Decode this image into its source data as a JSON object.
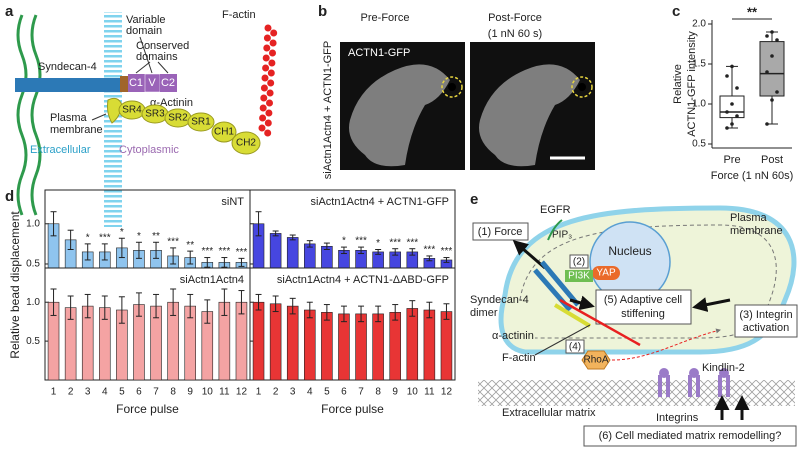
{
  "panel_letters": [
    "a",
    "b",
    "c",
    "d",
    "e"
  ],
  "diagram_a": {
    "syndecan": "Syndecan-4",
    "variable": [
      "Variable",
      "domain"
    ],
    "conserved": [
      "Conserved",
      "domains"
    ],
    "actinin": "α-Actinin",
    "factin": "F-actin",
    "membrane": [
      "Plasma",
      "membrane"
    ],
    "extracellular": "Extracellular",
    "cytoplasmic": "Cytoplasmic",
    "domains": [
      "C1",
      "V",
      "C2"
    ],
    "repeats": [
      "SR4",
      "SR3",
      "SR2",
      "SR1",
      "CH1",
      "CH2"
    ]
  },
  "images_b": {
    "columns": [
      [
        "Pre-Force"
      ],
      [
        "Post-Force",
        "(1 nN 60 s)"
      ]
    ],
    "stain": "ACTN1-GFP",
    "row_label": "siActn1Actn4 + ACTN1-GFP"
  },
  "d_ylabel": "Relative bead displacement",
  "chart_data": [
    {
      "type": "box",
      "categories": [
        "Pre",
        "Post"
      ],
      "colors": [
        "#ffffff",
        "#a9a9a9"
      ],
      "stats": [
        {
          "whislo": 0.7,
          "q1": 0.83,
          "med": 0.9,
          "q3": 1.1,
          "whishi": 1.47
        },
        {
          "whislo": 0.75,
          "q1": 1.1,
          "med": 1.38,
          "q3": 1.78,
          "whishi": 1.9
        }
      ],
      "points": [
        [
          0.7,
          0.75,
          0.85,
          0.9,
          1.0,
          1.2,
          1.35,
          1.47
        ],
        [
          0.75,
          1.05,
          1.15,
          1.4,
          1.6,
          1.8,
          1.85,
          1.9
        ]
      ],
      "ylabel": [
        "Relative",
        "ACTN1-GFP intensity"
      ],
      "xlabel": "Force (1 nN 60s)",
      "significance": "**",
      "ylim": [
        0.45,
        2.05
      ],
      "yticks": [
        {
          "value": 0.5,
          "label": "0.5"
        },
        {
          "value": 1,
          "label": "1.0"
        },
        {
          "value": 1.5,
          "label": "1.5"
        },
        {
          "value": 2,
          "label": "2.0"
        }
      ]
    },
    {
      "type": "bar",
      "title": "siNT",
      "color": "#8fc4ee",
      "values": [
        1.0,
        0.8,
        0.65,
        0.65,
        0.7,
        0.67,
        0.67,
        0.6,
        0.58,
        0.52,
        0.52,
        0.52
      ],
      "errors": [
        0.15,
        0.12,
        0.1,
        0.1,
        0.12,
        0.1,
        0.1,
        0.1,
        0.08,
        0.06,
        0.06,
        0.05
      ],
      "annotations": [
        null,
        null,
        "*",
        "***",
        "*",
        "*",
        "**",
        "***",
        "**",
        "***",
        "***",
        "***"
      ],
      "ylim": [
        0.45,
        1.42
      ],
      "yticks": [
        {
          "value": 0.5,
          "label": "0.5"
        },
        {
          "value": 1,
          "label": "1.0"
        }
      ]
    },
    {
      "type": "bar",
      "title": "siActn1Actn4 + ACTN1-GFP",
      "color": "#4646e0",
      "values": [
        1.0,
        0.88,
        0.83,
        0.75,
        0.72,
        0.67,
        0.67,
        0.65,
        0.65,
        0.65,
        0.57,
        0.55
      ],
      "errors": [
        0.15,
        0.03,
        0.03,
        0.04,
        0.04,
        0.04,
        0.04,
        0.03,
        0.04,
        0.04,
        0.03,
        0.03
      ],
      "annotations": [
        null,
        null,
        null,
        null,
        null,
        "*",
        "***",
        "*",
        "***",
        "***",
        "***",
        "***"
      ],
      "ylim": [
        0.45,
        1.42
      ],
      "yticks": [
        0.5,
        1
      ]
    },
    {
      "type": "bar",
      "title": "siActn1Actn4",
      "color": "#f4a3a3",
      "categories": [
        "1",
        "2",
        "3",
        "4",
        "5",
        "6",
        "7",
        "8",
        "9",
        "10",
        "11",
        "12"
      ],
      "xlabel": "Force pulse",
      "values": [
        1.0,
        0.93,
        0.95,
        0.93,
        0.9,
        0.97,
        0.95,
        1.0,
        0.95,
        0.88,
        1.0,
        1.0
      ],
      "errors": [
        0.17,
        0.15,
        0.15,
        0.15,
        0.17,
        0.15,
        0.15,
        0.17,
        0.15,
        0.15,
        0.17,
        0.15
      ],
      "ylim": [
        0,
        1.44
      ],
      "yticks": [
        {
          "value": 0.5,
          "label": "0.5"
        },
        {
          "value": 1,
          "label": "1.0"
        }
      ]
    },
    {
      "type": "bar",
      "title": "siActn1Actn4 + ACTN1-ΔABD-GFP",
      "color": "#e83535",
      "categories": [
        "1",
        "2",
        "3",
        "4",
        "5",
        "6",
        "7",
        "8",
        "9",
        "10",
        "11",
        "12"
      ],
      "xlabel": "Force pulse",
      "values": [
        1.0,
        0.98,
        0.95,
        0.9,
        0.87,
        0.85,
        0.85,
        0.85,
        0.87,
        0.92,
        0.9,
        0.88
      ],
      "errors": [
        0.1,
        0.1,
        0.1,
        0.1,
        0.1,
        0.1,
        0.1,
        0.1,
        0.1,
        0.1,
        0.1,
        0.1
      ],
      "ylim": [
        0,
        1.44
      ],
      "yticks": [
        0.5,
        1
      ]
    }
  ],
  "diagram_e": {
    "force": "(1) Force",
    "egfr": "EGFR",
    "pip3": "PIP₃",
    "membrane": [
      "Plasma",
      "membrane"
    ],
    "nucleus": "Nucleus",
    "yap": "YAP",
    "step2": "(2)",
    "pi3k": "PI3K",
    "stiffening": [
      "(5) Adaptive cell",
      "stiffening"
    ],
    "integrin_activation": [
      "(3) Integrin",
      "activation"
    ],
    "syndecan": [
      "Syndecan-4",
      "dimer"
    ],
    "actinin": "α-actinin",
    "factin": "F-actin",
    "step4": "(4)",
    "rhoa": "RhoA",
    "kindlin": "Kindlin-2",
    "ecm": "Extracellular matrix",
    "integrins": "Integrins",
    "remodelling": "(6) Cell mediated matrix remodelling?"
  }
}
